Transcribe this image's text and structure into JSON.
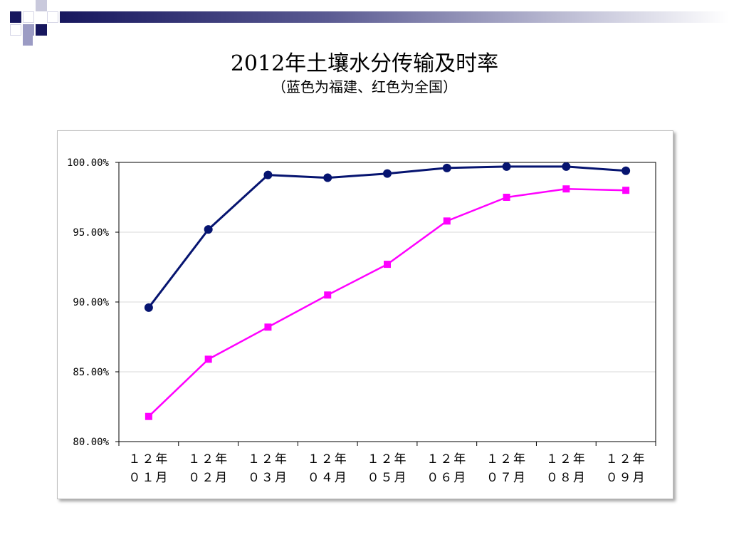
{
  "slide": {
    "title": "2012年土壤水分传输及时率",
    "subtitle": "（蓝色为福建、红色为全国）"
  },
  "colors": {
    "fujian": "#061470",
    "national": "#ff00ff",
    "deco_dark": "#17175e",
    "deco_light": "#9b9bc4"
  },
  "chart_data": {
    "type": "line",
    "title": "",
    "xlabel": "",
    "ylabel": "",
    "categories": [
      [
        "１２年",
        "０１月"
      ],
      [
        "１２年",
        "０２月"
      ],
      [
        "１２年",
        "０３月"
      ],
      [
        "１２年",
        "０４月"
      ],
      [
        "１２年",
        "０５月"
      ],
      [
        "１２年",
        "０６月"
      ],
      [
        "１２年",
        "０７月"
      ],
      [
        "１２年",
        "０８月"
      ],
      [
        "１２年",
        "０９月"
      ]
    ],
    "ylim": [
      80,
      100
    ],
    "yticks": [
      {
        "value": 100,
        "label": "100.00%"
      },
      {
        "value": 95,
        "label": "95.00%"
      },
      {
        "value": 90,
        "label": "90.00%"
      },
      {
        "value": 85,
        "label": "85.00%"
      },
      {
        "value": 80,
        "label": "80.00%"
      }
    ],
    "grid": true,
    "series": [
      {
        "key": "fujian",
        "values": [
          89.6,
          95.2,
          99.1,
          98.9,
          99.2,
          99.6,
          99.7,
          99.7,
          99.4
        ],
        "marker": "circle"
      },
      {
        "key": "national",
        "values": [
          81.8,
          85.9,
          88.2,
          90.5,
          92.7,
          95.8,
          97.5,
          98.1,
          98.0
        ],
        "marker": "square"
      }
    ]
  }
}
